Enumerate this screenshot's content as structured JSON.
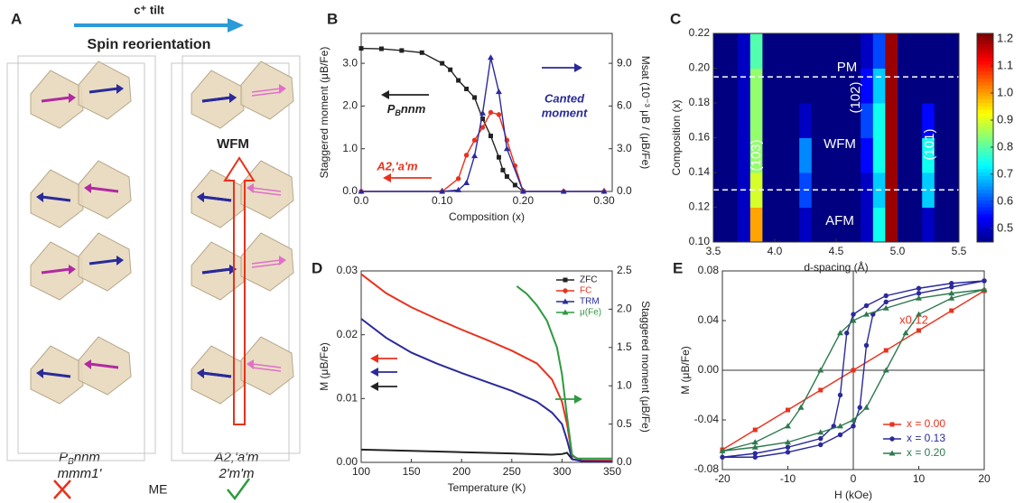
{
  "panel_a": {
    "letter": "A",
    "arrow_label": "c⁺ tilt",
    "heading": "Spin reorientation",
    "wfm": "WFM",
    "left_group": {
      "p": "P",
      "sub": "B",
      "rest": "nnm"
    },
    "left_pg": "mmm1'",
    "right_group": "A2,'a'm",
    "right_pg": "2'm'm",
    "me": "ME"
  },
  "chart_data": [
    {
      "type": "line",
      "letter": "B",
      "xlabel": "Composition (x)",
      "ylabel": "Staggered moment (μB/Fe)",
      "y2label": "Msat (10⁻³ μB / (μB/Fe)",
      "xlim": [
        0,
        0.31
      ],
      "xticks": [
        {
          "value": 0,
          "label": "0.0"
        },
        {
          "value": 0.1,
          "label": "0.10"
        },
        {
          "value": 0.2,
          "label": "0.20"
        },
        {
          "value": 0.3,
          "label": "0.30"
        }
      ],
      "ylim": [
        0,
        3.7
      ],
      "yticks": [
        {
          "value": 0,
          "label": "0.0"
        },
        {
          "value": 1,
          "label": "1.0"
        },
        {
          "value": 2,
          "label": "2.0"
        },
        {
          "value": 3,
          "label": "3.0"
        }
      ],
      "y2lim": [
        0,
        11.1
      ],
      "y2ticks": [
        {
          "value": 0,
          "label": "0.0"
        },
        {
          "value": 3,
          "label": "3.0"
        },
        {
          "value": 6,
          "label": "6.0"
        },
        {
          "value": 9,
          "label": "9.0"
        }
      ],
      "annotations": [
        {
          "p": "P",
          "sub": "B",
          "rest": "nnm"
        },
        "A2,'a'm",
        "Canted",
        "moment"
      ],
      "series": [
        {
          "color": "#222222",
          "marker": "square",
          "x": [
            0,
            0.025,
            0.05,
            0.075,
            0.1,
            0.11,
            0.12,
            0.13,
            0.14,
            0.15,
            0.16,
            0.17,
            0.175,
            0.18,
            0.19,
            0.2
          ],
          "values": [
            3.35,
            3.34,
            3.3,
            3.25,
            3.0,
            2.85,
            2.6,
            2.4,
            2.2,
            1.7,
            1.3,
            0.8,
            0.5,
            0.35,
            0.15,
            0
          ]
        },
        {
          "color": "#e8321e",
          "marker": "circle",
          "x": [
            0,
            0.1,
            0.12,
            0.13,
            0.14,
            0.15,
            0.16,
            0.17,
            0.18,
            0.19,
            0.2,
            0.25,
            0.3
          ],
          "values": [
            0,
            0,
            0.3,
            0.85,
            1.2,
            1.5,
            1.85,
            1.8,
            1.2,
            0.6,
            0,
            0,
            0
          ]
        },
        {
          "color": "#2a2a9a",
          "marker": "triangle",
          "axis": "y2",
          "x": [
            0,
            0.1,
            0.12,
            0.13,
            0.14,
            0.15,
            0.16,
            0.17,
            0.18,
            0.2,
            0.25,
            0.3
          ],
          "values": [
            0,
            0,
            0.1,
            0.6,
            2.5,
            5.5,
            9.4,
            7.0,
            3.0,
            0,
            0,
            0
          ]
        }
      ]
    },
    {
      "type": "heatmap",
      "letter": "C",
      "xlabel": "d-spacing (Å)",
      "ylabel": "Composition (x)",
      "colormap": "jet",
      "xlim": [
        3.5,
        5.5
      ],
      "xticks": [
        3.5,
        {
          "value": 4,
          "label": "4.0"
        },
        4.5,
        {
          "value": 5,
          "label": "5.0"
        },
        5.5
      ],
      "ylim": [
        0.1,
        0.22
      ],
      "yticks": [
        {
          "value": 0.1,
          "label": "0.10"
        },
        0.12,
        0.14,
        0.16,
        0.18,
        {
          "value": 0.2,
          "label": "0.20"
        },
        0.22
      ],
      "clim": [
        0.45,
        1.22
      ],
      "cticks": [
        0.5,
        0.6,
        0.7,
        0.8,
        0.9,
        {
          "value": 1,
          "label": "1.0"
        },
        1.1,
        1.2
      ],
      "hlines": [
        0.13,
        0.195
      ],
      "annotations": [
        "PM",
        "WFM",
        "AFM",
        "(103)",
        "(102)",
        "(101)"
      ],
      "x_edges": [
        3.5,
        3.6,
        3.7,
        3.8,
        3.9,
        4.0,
        4.1,
        4.2,
        4.3,
        4.4,
        4.5,
        4.6,
        4.7,
        4.8,
        4.9,
        5.0,
        5.1,
        5.2,
        5.3,
        5.4,
        5.5
      ],
      "y_edges": [
        0.1,
        0.12,
        0.14,
        0.16,
        0.18,
        0.2,
        0.22
      ],
      "z": [
        [
          0.45,
          0.45,
          0.5,
          1.0,
          0.45,
          0.45,
          0.45,
          0.5,
          0.45,
          0.45,
          0.45,
          0.45,
          0.5,
          0.75,
          1.2,
          0.45,
          0.45,
          0.5,
          0.45,
          0.45
        ],
        [
          0.45,
          0.45,
          0.5,
          0.9,
          0.45,
          0.45,
          0.45,
          0.6,
          0.45,
          0.45,
          0.45,
          0.45,
          0.5,
          0.7,
          1.2,
          0.45,
          0.45,
          0.7,
          0.45,
          0.45
        ],
        [
          0.45,
          0.45,
          0.5,
          0.85,
          0.45,
          0.45,
          0.45,
          0.65,
          0.45,
          0.45,
          0.45,
          0.45,
          0.55,
          0.75,
          1.2,
          0.45,
          0.45,
          0.75,
          0.45,
          0.45
        ],
        [
          0.45,
          0.45,
          0.5,
          0.85,
          0.45,
          0.45,
          0.45,
          0.5,
          0.45,
          0.45,
          0.45,
          0.45,
          0.6,
          0.75,
          1.2,
          0.45,
          0.45,
          0.55,
          0.45,
          0.45
        ],
        [
          0.45,
          0.45,
          0.5,
          0.85,
          0.45,
          0.45,
          0.45,
          0.45,
          0.45,
          0.45,
          0.45,
          0.45,
          0.55,
          0.7,
          1.2,
          0.45,
          0.45,
          0.45,
          0.45,
          0.45
        ],
        [
          0.45,
          0.45,
          0.5,
          0.8,
          0.45,
          0.45,
          0.45,
          0.45,
          0.45,
          0.45,
          0.45,
          0.45,
          0.5,
          0.6,
          1.2,
          0.45,
          0.45,
          0.45,
          0.45,
          0.45
        ]
      ]
    },
    {
      "type": "line",
      "letter": "D",
      "xlabel": "Temperature (K)",
      "ylabel": "M (μB/Fe)",
      "y2label": "Staggered moment (μB/Fe)",
      "legend": "upper right",
      "xlim": [
        100,
        350
      ],
      "xticks": [
        100,
        150,
        200,
        250,
        300,
        350
      ],
      "ylim": [
        0,
        0.03
      ],
      "yticks": [
        {
          "value": 0,
          "label": "0.00"
        },
        0.01,
        0.02,
        0.03
      ],
      "y2lim": [
        0,
        2.5
      ],
      "y2ticks": [
        {
          "value": 0,
          "label": "0.0"
        },
        0.5,
        {
          "value": 1,
          "label": "1.0"
        },
        1.5,
        {
          "value": 2,
          "label": "2.0"
        },
        2.5
      ],
      "series": [
        {
          "name": "ZFC",
          "color": "#222222",
          "marker": "square",
          "x": [
            100,
            150,
            200,
            250,
            290,
            300,
            305,
            310,
            320,
            350
          ],
          "values": [
            0.002,
            0.0018,
            0.0016,
            0.0014,
            0.0012,
            0.0013,
            0.0015,
            0.0005,
            0.0002,
            0.0001
          ]
        },
        {
          "name": "FC",
          "color": "#e8321e",
          "marker": "circle",
          "x": [
            100,
            125,
            150,
            175,
            200,
            225,
            250,
            275,
            290,
            300,
            305,
            310,
            320,
            350
          ],
          "values": [
            0.0295,
            0.0265,
            0.0243,
            0.0225,
            0.0208,
            0.0192,
            0.0175,
            0.0155,
            0.013,
            0.0095,
            0.006,
            0.001,
            0.0003,
            0.0003
          ]
        },
        {
          "name": "TRM",
          "color": "#2a2a9a",
          "marker": "triangle",
          "x": [
            100,
            125,
            150,
            175,
            200,
            225,
            250,
            275,
            290,
            300,
            305,
            310,
            320,
            350
          ],
          "values": [
            0.0225,
            0.0195,
            0.0172,
            0.0155,
            0.014,
            0.0126,
            0.0112,
            0.0095,
            0.0078,
            0.006,
            0.0035,
            0.0005,
            0.0002,
            0.0001
          ]
        },
        {
          "name": "μ(Fe)",
          "color": "#2e9a3e",
          "marker": "triangle",
          "axis": "y2",
          "x": [
            255,
            265,
            275,
            285,
            295,
            300,
            305,
            310,
            315,
            320,
            330,
            340,
            350
          ],
          "values": [
            2.3,
            2.2,
            2.05,
            1.85,
            1.5,
            1.15,
            0.6,
            0.1,
            0.05,
            0.05,
            0.05,
            0.05,
            0.05
          ]
        }
      ]
    },
    {
      "type": "line",
      "letter": "E",
      "xlabel": "H (kOe)",
      "ylabel": "M (μB/Fe)",
      "legend": "lower right",
      "xlim": [
        -20,
        20
      ],
      "xticks": [
        -20,
        -10,
        0,
        10,
        20
      ],
      "ylim": [
        -0.08,
        0.08
      ],
      "yticks": [
        {
          "value": -0.08,
          "label": "-0.08"
        },
        -0.04,
        {
          "value": 0,
          "label": "0.00"
        },
        0.04,
        0.08
      ],
      "annotations": [
        "x0.12"
      ],
      "series": [
        {
          "name": "x = 0.00",
          "color": "#e8321e",
          "marker": "square",
          "x": [
            -20,
            -15,
            -10,
            -5,
            0,
            5,
            10,
            15,
            20
          ],
          "values": [
            -0.064,
            -0.048,
            -0.032,
            -0.016,
            0,
            0.016,
            0.032,
            0.048,
            0.064
          ]
        },
        {
          "name": "x = 0.13",
          "color": "#2a2a9a",
          "marker": "circle",
          "x": [
            20,
            15,
            10,
            5,
            2,
            0,
            -1,
            -2,
            -3,
            -5,
            -10,
            -15,
            -20,
            -15,
            -10,
            -5,
            -2,
            0,
            1,
            2,
            3,
            5,
            10,
            15,
            20
          ],
          "values": [
            0.072,
            0.07,
            0.066,
            0.06,
            0.052,
            0.045,
            0.03,
            -0.02,
            -0.045,
            -0.055,
            -0.062,
            -0.067,
            -0.07,
            -0.07,
            -0.066,
            -0.06,
            -0.052,
            -0.045,
            -0.03,
            0.02,
            0.045,
            0.055,
            0.062,
            0.067,
            0.072
          ]
        },
        {
          "name": "x = 0.20",
          "color": "#2e7a4e",
          "marker": "triangle",
          "x": [
            20,
            15,
            10,
            5,
            2,
            0,
            -2,
            -5,
            -8,
            -10,
            -15,
            -20,
            -15,
            -10,
            -5,
            -2,
            0,
            2,
            5,
            8,
            10,
            15,
            20
          ],
          "values": [
            0.065,
            0.062,
            0.058,
            0.05,
            0.045,
            0.04,
            0.03,
            0,
            -0.03,
            -0.045,
            -0.058,
            -0.065,
            -0.062,
            -0.058,
            -0.05,
            -0.045,
            -0.04,
            -0.03,
            0,
            0.03,
            0.045,
            0.058,
            0.065
          ]
        }
      ]
    }
  ]
}
